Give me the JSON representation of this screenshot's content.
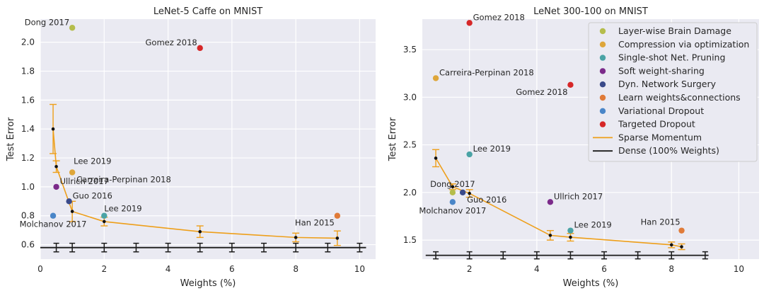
{
  "colors": {
    "plot_bg": "#eaeaf2",
    "grid": "#ffffff",
    "text": "#262626",
    "sparse": "#ee9f1a",
    "dense": "#1a1a1a",
    "legend_bg": "#eaeaf2"
  },
  "chart_data": [
    {
      "type": "scatter",
      "title": "LeNet-5 Caffe on MNIST",
      "xlabel": "Weights (%)",
      "ylabel": "Test Error",
      "xlim": [
        0,
        10.5
      ],
      "ylim": [
        0.5,
        2.16
      ],
      "xticks": [
        0,
        2,
        4,
        6,
        8,
        10
      ],
      "yticks": [
        0.6,
        0.8,
        1.0,
        1.2,
        1.4,
        1.6,
        1.8,
        2.0
      ],
      "ytick_labels": [
        "0.6",
        "0.8",
        "1.0",
        "1.2",
        "1.4",
        "1.6",
        "1.8",
        "2.0"
      ],
      "points": [
        {
          "method": "Layer-wise Brain Damage",
          "label": "Dong 2017",
          "x": 1.0,
          "y": 2.1,
          "color": "#b5bd4c",
          "label_pos": "left"
        },
        {
          "method": "Targeted Dropout",
          "label": "Gomez 2018",
          "x": 5.0,
          "y": 1.96,
          "color": "#d62728",
          "label_pos": "left"
        },
        {
          "method": "Compression via optimization",
          "label": "Carreira-Perpinan 2018",
          "x": 1.0,
          "y": 1.1,
          "color": "#dea63a",
          "label_pos": "below-right"
        },
        {
          "method": "Soft weight-sharing",
          "label": "Ullrich 2017",
          "x": 0.5,
          "y": 1.0,
          "color": "#7b2a8a",
          "label_pos": "right"
        },
        {
          "method": "Dyn. Network Surgery",
          "label": "Guo 2016",
          "x": 0.9,
          "y": 0.9,
          "color": "#3a4a8a",
          "label_pos": "right"
        },
        {
          "method": "Single-shot Net. Pruning",
          "label": "Lee 2019",
          "x": 2.0,
          "y": 0.8,
          "color": "#4aa3a5",
          "label_pos": "above-right"
        },
        {
          "method": "Variational Dropout",
          "label": "Molchanov 2017",
          "x": 0.4,
          "y": 0.8,
          "color": "#4a86c8",
          "label_pos": "below"
        },
        {
          "method": "Learn weights&connections",
          "label": "Han 2015",
          "x": 9.3,
          "y": 0.8,
          "color": "#e07b39",
          "label_pos": "below-left"
        }
      ],
      "sparse_momentum": {
        "x": [
          0.4,
          0.5,
          1.0,
          2.0,
          5.0,
          8.0,
          9.3
        ],
        "y": [
          1.4,
          1.14,
          0.83,
          0.76,
          0.69,
          0.65,
          0.645
        ],
        "err": [
          0.17,
          0.04,
          0.07,
          0.03,
          0.04,
          0.03,
          0.05
        ]
      },
      "dense": {
        "x": [
          0.5,
          1,
          2,
          3,
          4,
          5,
          6,
          7,
          8,
          9,
          10
        ],
        "y": 0.58,
        "err": 0.015,
        "x_range": [
          0,
          10.2
        ]
      },
      "extra_label": {
        "text": "Lee 2019",
        "x": 1.0,
        "y": 1.15
      }
    },
    {
      "type": "scatter",
      "title": "LeNet 300-100 on MNIST",
      "xlabel": "Weights (%)",
      "ylabel": "Test Error",
      "xlim": [
        0.6,
        10.6
      ],
      "ylim": [
        1.3,
        3.82
      ],
      "xticks": [
        2,
        4,
        6,
        8,
        10
      ],
      "yticks": [
        1.5,
        2.0,
        2.5,
        3.0,
        3.5
      ],
      "ytick_labels": [
        "1.5",
        "2.0",
        "2.5",
        "3.0",
        "3.5"
      ],
      "points": [
        {
          "method": "Targeted Dropout",
          "label": "Gomez 2018",
          "x": 2.0,
          "y": 3.78,
          "color": "#d62728",
          "label_pos": "right"
        },
        {
          "method": "Compression via optimization",
          "label": "Carreira-Perpinan 2018",
          "x": 1.0,
          "y": 3.2,
          "color": "#dea63a",
          "label_pos": "right"
        },
        {
          "method": "Targeted Dropout",
          "label": "Gomez 2018",
          "x": 5.0,
          "y": 3.13,
          "color": "#d62728",
          "label_pos": "below-left"
        },
        {
          "method": "Single-shot Net. Pruning",
          "label": "Lee 2019",
          "x": 2.0,
          "y": 2.4,
          "color": "#4aa3a5",
          "label_pos": "right"
        },
        {
          "method": "Layer-wise Brain Damage",
          "label": "Dong 2017",
          "x": 1.5,
          "y": 2.0,
          "color": "#b5bd4c",
          "label_pos": "above"
        },
        {
          "method": "Dyn. Network Surgery",
          "label": "Guo 2016",
          "x": 1.8,
          "y": 2.0,
          "color": "#3a4a8a",
          "label_pos": "below-right"
        },
        {
          "method": "Variational Dropout",
          "label": "Molchanov 2017",
          "x": 1.5,
          "y": 1.9,
          "color": "#4a86c8",
          "label_pos": "below"
        },
        {
          "method": "Soft weight-sharing",
          "label": "Ullrich 2017",
          "x": 4.4,
          "y": 1.9,
          "color": "#7b2a8a",
          "label_pos": "right"
        },
        {
          "method": "Single-shot Net. Pruning",
          "label": "Lee 2019",
          "x": 5.0,
          "y": 1.6,
          "color": "#4aa3a5",
          "label_pos": "right"
        },
        {
          "method": "Learn weights&connections",
          "label": "Han 2015",
          "x": 8.3,
          "y": 1.6,
          "color": "#e07b39",
          "label_pos": "above-left"
        }
      ],
      "sparse_momentum": {
        "x": [
          1.0,
          1.5,
          2.0,
          4.4,
          5.0,
          8.0,
          8.3
        ],
        "y": [
          2.36,
          2.06,
          1.99,
          1.55,
          1.53,
          1.45,
          1.43
        ],
        "err": [
          0.09,
          0.03,
          0.04,
          0.05,
          0.04,
          0.03,
          0.03
        ]
      },
      "dense": {
        "x": [
          1,
          2,
          3,
          4,
          5,
          6,
          7,
          8,
          9
        ],
        "y": 1.34,
        "err": 0.015,
        "x_range": [
          0.7,
          9.1
        ]
      }
    }
  ],
  "legend": {
    "items": [
      {
        "label": "Layer-wise Brain Damage",
        "color": "#b5bd4c",
        "kind": "dot"
      },
      {
        "label": "Compression via optimization",
        "color": "#dea63a",
        "kind": "dot"
      },
      {
        "label": "Single-shot Net. Pruning",
        "color": "#4aa3a5",
        "kind": "dot"
      },
      {
        "label": "Soft weight-sharing",
        "color": "#7b2a8a",
        "kind": "dot"
      },
      {
        "label": "Dyn. Network Surgery",
        "color": "#3a4a8a",
        "kind": "dot"
      },
      {
        "label": "Learn weights&connections",
        "color": "#e07b39",
        "kind": "dot"
      },
      {
        "label": "Variational Dropout",
        "color": "#4a86c8",
        "kind": "dot"
      },
      {
        "label": "Targeted Dropout",
        "color": "#d62728",
        "kind": "dot"
      },
      {
        "label": "Sparse Momentum",
        "color": "#ee9f1a",
        "kind": "line"
      },
      {
        "label": "Dense (100% Weights)",
        "color": "#1a1a1a",
        "kind": "line"
      }
    ]
  }
}
